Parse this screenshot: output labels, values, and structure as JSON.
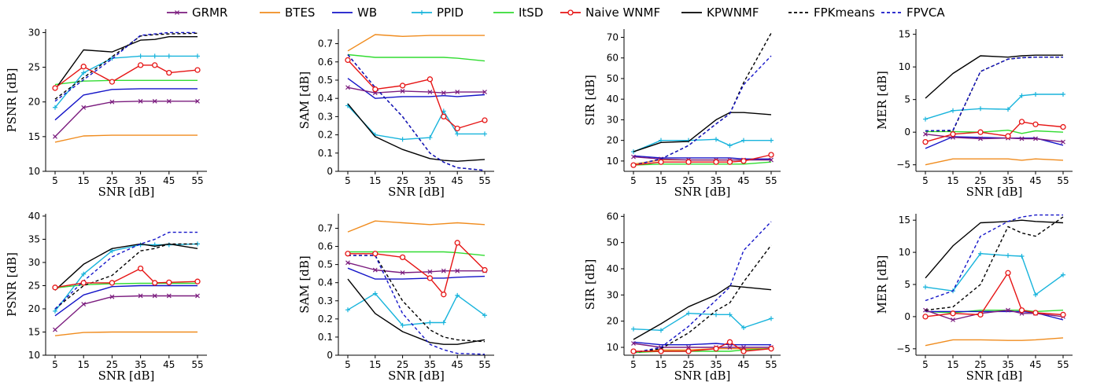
{
  "legend": [
    {
      "name": "GRMR",
      "color": "#7b1c7e",
      "dash": "",
      "marker": "x"
    },
    {
      "name": "BTES",
      "color": "#f08c1e",
      "dash": "",
      "marker": ""
    },
    {
      "name": "WB",
      "color": "#1414c8",
      "dash": "",
      "marker": ""
    },
    {
      "name": "PPID",
      "color": "#18b4dc",
      "dash": "",
      "marker": "plus"
    },
    {
      "name": "ItSD",
      "color": "#32dc32",
      "dash": "",
      "marker": ""
    },
    {
      "name": "Naive WNMF",
      "color": "#e61414",
      "dash": "",
      "marker": "o"
    },
    {
      "name": "KPWNMF",
      "color": "#000000",
      "dash": "",
      "marker": ""
    },
    {
      "name": "FPKmeans",
      "color": "#000000",
      "dash": "4,3",
      "marker": ""
    },
    {
      "name": "FPVCA",
      "color": "#1414c8",
      "dash": "4,3",
      "marker": ""
    }
  ],
  "chart_data": [
    {
      "type": "line",
      "xlabel": "SNR [dB]",
      "ylabel": "PSNR [dB]",
      "x": [
        5,
        15,
        25,
        35,
        40,
        45,
        55
      ],
      "xticks": [
        5,
        15,
        25,
        35,
        45,
        55
      ],
      "ylim": [
        10,
        30.5
      ],
      "yticks": [
        10,
        15,
        20,
        25,
        30
      ],
      "series": [
        {
          "name": "GRMR",
          "values": [
            15,
            19.2,
            20,
            20.1,
            20.1,
            20.1,
            20.1
          ]
        },
        {
          "name": "BTES",
          "values": [
            14.2,
            15.1,
            15.2,
            15.2,
            15.2,
            15.2,
            15.2
          ]
        },
        {
          "name": "WB",
          "values": [
            17.4,
            21,
            21.8,
            21.9,
            21.9,
            21.9,
            21.9
          ]
        },
        {
          "name": "PPID",
          "values": [
            19.2,
            24.2,
            26.3,
            26.6,
            26.6,
            26.6,
            26.6
          ]
        },
        {
          "name": "ItSD",
          "values": [
            22.5,
            23,
            23.1,
            23.1,
            23.1,
            23.1,
            23.1
          ]
        },
        {
          "name": "Naive WNMF",
          "values": [
            22,
            25.1,
            22.9,
            25.3,
            25.3,
            24.2,
            24.6
          ]
        },
        {
          "name": "KPWNMF",
          "values": [
            21.8,
            27.5,
            27.2,
            28.9,
            29,
            29.4,
            29.4
          ]
        },
        {
          "name": "FPKmeans",
          "values": [
            20.4,
            23.5,
            26.5,
            29.5,
            29.7,
            29.8,
            29.9
          ]
        },
        {
          "name": "FPVCA",
          "values": [
            20.1,
            23.2,
            26.2,
            29.6,
            29.8,
            30,
            30
          ]
        }
      ]
    },
    {
      "type": "line",
      "xlabel": "SNR [dB]",
      "ylabel": "SAM [dB]",
      "x": [
        5,
        15,
        25,
        35,
        40,
        45,
        55
      ],
      "xticks": [
        5,
        15,
        25,
        35,
        45,
        55
      ],
      "ylim": [
        0,
        0.78
      ],
      "yticks": [
        0,
        0.1,
        0.2,
        0.3,
        0.4,
        0.5,
        0.6,
        0.7
      ],
      "series": [
        {
          "name": "GRMR",
          "values": [
            0.46,
            0.43,
            0.44,
            0.435,
            0.43,
            0.435,
            0.435
          ]
        },
        {
          "name": "BTES",
          "values": [
            0.66,
            0.75,
            0.74,
            0.745,
            0.745,
            0.745,
            0.745
          ]
        },
        {
          "name": "WB",
          "values": [
            0.51,
            0.4,
            0.41,
            0.41,
            0.415,
            0.41,
            0.42
          ]
        },
        {
          "name": "PPID",
          "values": [
            0.36,
            0.2,
            0.175,
            0.185,
            0.33,
            0.205,
            0.205
          ]
        },
        {
          "name": "ItSD",
          "values": [
            0.64,
            0.625,
            0.625,
            0.625,
            0.625,
            0.62,
            0.605
          ]
        },
        {
          "name": "Naive WNMF",
          "values": [
            0.61,
            0.45,
            0.47,
            0.505,
            0.3,
            0.235,
            0.28
          ]
        },
        {
          "name": "KPWNMF",
          "values": [
            0.37,
            0.19,
            0.12,
            0.07,
            0.06,
            0.055,
            0.065
          ]
        },
        {
          "name": "FPKmeans",
          "values": [
            0.64,
            0.46,
            0.3,
            0.1,
            0.05,
            0.02,
            0.005
          ]
        },
        {
          "name": "FPVCA",
          "values": [
            0.64,
            0.46,
            0.3,
            0.1,
            0.05,
            0.02,
            0.005
          ]
        }
      ]
    },
    {
      "type": "line",
      "xlabel": "SNR [dB]",
      "ylabel": "SIR [dB]",
      "x": [
        5,
        15,
        25,
        35,
        40,
        45,
        55
      ],
      "xticks": [
        5,
        15,
        25,
        35,
        45,
        55
      ],
      "ylim": [
        5,
        74
      ],
      "yticks": [
        10,
        20,
        30,
        40,
        50,
        60,
        70
      ],
      "series": [
        {
          "name": "GRMR",
          "values": [
            12,
            11,
            10.5,
            10.5,
            10.5,
            10.5,
            10.5
          ]
        },
        {
          "name": "BTES",
          "values": [
            8.5,
            10.5,
            10.5,
            10.5,
            10.5,
            10.5,
            11
          ]
        },
        {
          "name": "WB",
          "values": [
            12.5,
            11.5,
            11.5,
            11.5,
            11.5,
            11,
            11
          ]
        },
        {
          "name": "PPID",
          "values": [
            14.5,
            20,
            20,
            20.5,
            17.5,
            20,
            20
          ]
        },
        {
          "name": "ItSD",
          "values": [
            8,
            8.5,
            8.5,
            8.5,
            8.5,
            8.5,
            9.5
          ]
        },
        {
          "name": "Naive WNMF",
          "values": [
            8,
            9.5,
            9.5,
            9.5,
            9.5,
            10,
            13
          ]
        },
        {
          "name": "KPWNMF",
          "values": [
            14.5,
            19,
            19.5,
            30,
            33.5,
            33.5,
            32.5
          ]
        },
        {
          "name": "FPKmeans",
          "values": [
            8,
            11,
            17.5,
            28,
            33,
            48,
            72
          ]
        },
        {
          "name": "FPVCA",
          "values": [
            8,
            11,
            17.5,
            28,
            33,
            47,
            61
          ]
        }
      ]
    },
    {
      "type": "line",
      "xlabel": "SNR [dB]",
      "ylabel": "MER [dB]",
      "x": [
        5,
        15,
        25,
        35,
        40,
        45,
        55
      ],
      "xticks": [
        5,
        15,
        25,
        35,
        45,
        55
      ],
      "ylim": [
        -6,
        15.8
      ],
      "yticks": [
        -5,
        0,
        5,
        10,
        15
      ],
      "series": [
        {
          "name": "GRMR",
          "values": [
            -0.3,
            -0.8,
            -1,
            -0.9,
            -1,
            -1,
            -1.5
          ]
        },
        {
          "name": "BTES",
          "values": [
            -5,
            -4.1,
            -4.1,
            -4.1,
            -4.3,
            -4.1,
            -4.3
          ]
        },
        {
          "name": "WB",
          "values": [
            -2.5,
            -0.7,
            -0.8,
            -0.9,
            -0.9,
            -0.9,
            -2
          ]
        },
        {
          "name": "PPID",
          "values": [
            2,
            3.3,
            3.6,
            3.5,
            5.6,
            5.8,
            5.8
          ]
        },
        {
          "name": "ItSD",
          "values": [
            0.1,
            0.1,
            0,
            0.3,
            -0.2,
            0.2,
            0
          ]
        },
        {
          "name": "Naive WNMF",
          "values": [
            -1.5,
            -0.3,
            0,
            -0.6,
            1.6,
            1.2,
            0.8
          ]
        },
        {
          "name": "KPWNMF",
          "values": [
            5.2,
            9,
            11.7,
            11.5,
            11.7,
            11.8,
            11.8
          ]
        },
        {
          "name": "FPKmeans",
          "values": [
            0.2,
            0.2,
            9.3,
            11.2,
            11.4,
            11.5,
            11.5
          ]
        },
        {
          "name": "FPVCA",
          "values": [
            0.2,
            0.3,
            9.3,
            11.2,
            11.4,
            11.5,
            11.5
          ]
        }
      ]
    },
    {
      "type": "line",
      "xlabel": "SNR [dB]",
      "ylabel": "PSNR [dB]",
      "x": [
        5,
        15,
        25,
        35,
        40,
        45,
        55
      ],
      "xticks": [
        5,
        15,
        25,
        35,
        45,
        55
      ],
      "ylim": [
        10,
        40.5
      ],
      "yticks": [
        10,
        15,
        20,
        25,
        30,
        35,
        40
      ],
      "series": [
        {
          "name": "GRMR",
          "values": [
            15.5,
            21,
            22.6,
            22.8,
            22.8,
            22.8,
            22.8
          ]
        },
        {
          "name": "BTES",
          "values": [
            14.2,
            14.9,
            15,
            15,
            15,
            15,
            15
          ]
        },
        {
          "name": "WB",
          "values": [
            18.5,
            23,
            24.8,
            25,
            25,
            25,
            25
          ]
        },
        {
          "name": "PPID",
          "values": [
            19.5,
            27.5,
            32.5,
            33.8,
            33.8,
            33.8,
            34
          ]
        },
        {
          "name": "ItSD",
          "values": [
            24.5,
            25.2,
            25.4,
            25.5,
            25.5,
            25.5,
            25.5
          ]
        },
        {
          "name": "Naive WNMF",
          "values": [
            24.6,
            25.6,
            25.6,
            28.7,
            25.6,
            25.7,
            25.9
          ]
        },
        {
          "name": "KPWNMF",
          "values": [
            24,
            29.6,
            33,
            34,
            33.5,
            34,
            33
          ]
        },
        {
          "name": "FPKmeans",
          "values": [
            20,
            25,
            27.2,
            32.5,
            33,
            34,
            34
          ]
        },
        {
          "name": "FPVCA",
          "values": [
            20,
            26,
            31.2,
            34,
            35,
            36.5,
            36.5
          ]
        }
      ]
    },
    {
      "type": "line",
      "xlabel": "SNR [dB]",
      "ylabel": "SAM [dB]",
      "x": [
        5,
        15,
        25,
        35,
        40,
        45,
        55
      ],
      "xticks": [
        5,
        15,
        25,
        35,
        45,
        55
      ],
      "ylim": [
        0,
        0.78
      ],
      "yticks": [
        0,
        0.1,
        0.2,
        0.3,
        0.4,
        0.5,
        0.6,
        0.7
      ],
      "series": [
        {
          "name": "GRMR",
          "values": [
            0.51,
            0.47,
            0.455,
            0.46,
            0.465,
            0.465,
            0.465
          ]
        },
        {
          "name": "BTES",
          "values": [
            0.68,
            0.74,
            0.73,
            0.72,
            0.725,
            0.73,
            0.72
          ]
        },
        {
          "name": "WB",
          "values": [
            0.48,
            0.42,
            0.42,
            0.425,
            0.425,
            0.43,
            0.435
          ]
        },
        {
          "name": "PPID",
          "values": [
            0.25,
            0.34,
            0.165,
            0.18,
            0.18,
            0.33,
            0.22
          ]
        },
        {
          "name": "ItSD",
          "values": [
            0.57,
            0.57,
            0.57,
            0.57,
            0.57,
            0.565,
            0.55
          ]
        },
        {
          "name": "Naive WNMF",
          "values": [
            0.56,
            0.56,
            0.54,
            0.425,
            0.335,
            0.62,
            0.47
          ]
        },
        {
          "name": "KPWNMF",
          "values": [
            0.42,
            0.23,
            0.13,
            0.07,
            0.06,
            0.06,
            0.085
          ]
        },
        {
          "name": "FPKmeans",
          "values": [
            0.55,
            0.55,
            0.3,
            0.14,
            0.1,
            0.085,
            0.075
          ]
        },
        {
          "name": "FPVCA",
          "values": [
            0.55,
            0.55,
            0.23,
            0.06,
            0.03,
            0.01,
            0.005
          ]
        }
      ]
    },
    {
      "type": "line",
      "xlabel": "SNR [dB]",
      "ylabel": "SIR [dB]",
      "x": [
        5,
        15,
        25,
        35,
        40,
        45,
        55
      ],
      "xticks": [
        5,
        15,
        25,
        35,
        45,
        55
      ],
      "ylim": [
        7,
        61
      ],
      "yticks": [
        10,
        20,
        30,
        40,
        50,
        60
      ],
      "series": [
        {
          "name": "GRMR",
          "values": [
            11.5,
            10,
            10,
            10,
            10,
            10,
            10
          ]
        },
        {
          "name": "BTES",
          "values": [
            8,
            9,
            9,
            9.5,
            9.5,
            9.5,
            9.5
          ]
        },
        {
          "name": "WB",
          "values": [
            12,
            11,
            11,
            11.5,
            11,
            11,
            11
          ]
        },
        {
          "name": "PPID",
          "values": [
            17,
            16.5,
            23,
            22.5,
            22.5,
            17.5,
            21
          ]
        },
        {
          "name": "ItSD",
          "values": [
            8,
            8.5,
            8.5,
            8.5,
            8.5,
            9,
            9.5
          ]
        },
        {
          "name": "Naive WNMF",
          "values": [
            8.5,
            8.5,
            8.5,
            9.5,
            12,
            8.5,
            9.5
          ]
        },
        {
          "name": "KPWNMF",
          "values": [
            13,
            19,
            25.5,
            30,
            33.5,
            33,
            32
          ]
        },
        {
          "name": "FPKmeans",
          "values": [
            8,
            9.5,
            15.5,
            24,
            27,
            35,
            49
          ]
        },
        {
          "name": "FPVCA",
          "values": [
            8,
            10,
            18,
            28,
            33,
            47,
            58
          ]
        }
      ]
    },
    {
      "type": "line",
      "xlabel": "SNR [dB]",
      "ylabel": "MER [dB]",
      "x": [
        5,
        15,
        25,
        35,
        40,
        45,
        55
      ],
      "xticks": [
        5,
        15,
        25,
        35,
        45,
        55
      ],
      "ylim": [
        -6,
        16
      ],
      "yticks": [
        -5,
        0,
        5,
        10,
        15
      ],
      "series": [
        {
          "name": "GRMR",
          "values": [
            1,
            -0.5,
            0.5,
            1,
            0.5,
            0.5,
            0
          ]
        },
        {
          "name": "BTES",
          "values": [
            -4.5,
            -3.6,
            -3.6,
            -3.7,
            -3.7,
            -3.6,
            -3.3
          ]
        },
        {
          "name": "WB",
          "values": [
            0.8,
            0.8,
            0.8,
            0.8,
            0.8,
            0.6,
            -0.5
          ]
        },
        {
          "name": "PPID",
          "values": [
            4.6,
            4,
            9.8,
            9.5,
            9.4,
            3.4,
            6.5
          ]
        },
        {
          "name": "ItSD",
          "values": [
            0.8,
            0.6,
            1,
            1,
            1,
            0.8,
            1
          ]
        },
        {
          "name": "Naive WNMF",
          "values": [
            0,
            0.5,
            0.3,
            6.8,
            1,
            0.6,
            0.3
          ]
        },
        {
          "name": "KPWNMF",
          "values": [
            6,
            11,
            14.6,
            14.8,
            15,
            14.8,
            14.6
          ]
        },
        {
          "name": "FPKmeans",
          "values": [
            1,
            1.5,
            5,
            14,
            13,
            12.5,
            15.5
          ]
        },
        {
          "name": "FPVCA",
          "values": [
            2.5,
            4,
            12.5,
            14.8,
            15.5,
            15.8,
            15.8
          ]
        }
      ]
    }
  ]
}
